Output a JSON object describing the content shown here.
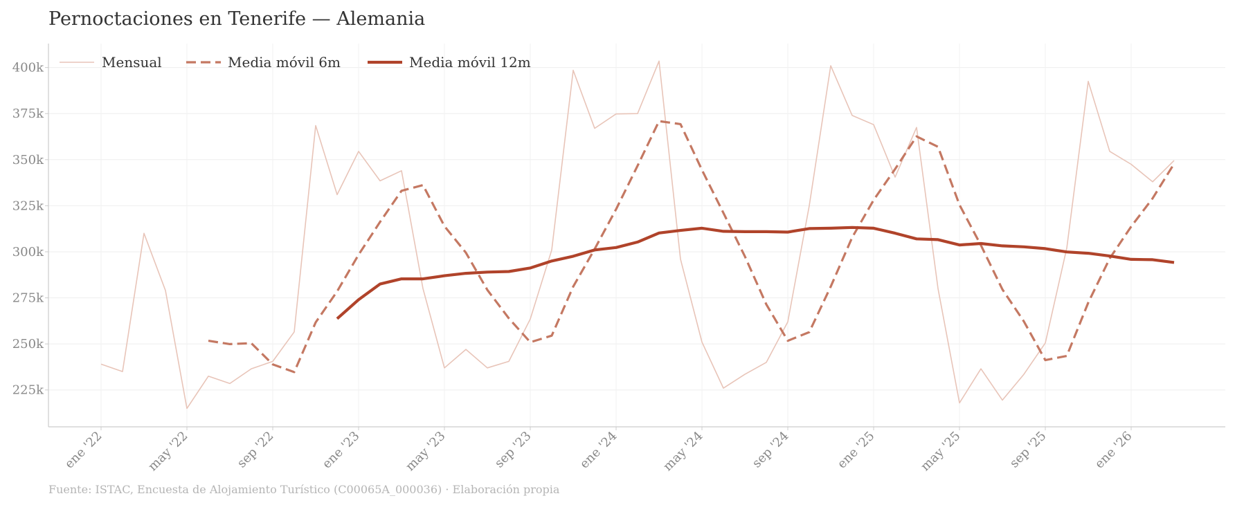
{
  "chart_data": {
    "type": "line",
    "title": "Pernoctaciones en Tenerife — Alemania",
    "source": "Fuente: ISTAC, Encuesta de Alojamiento Turístico (C00065A_000036)  ·  Elaboración propia",
    "xlabel": "",
    "ylabel": "",
    "ylim": [
      205000,
      413000
    ],
    "y_ticks": [
      225000,
      250000,
      275000,
      300000,
      325000,
      350000,
      375000,
      400000
    ],
    "y_tick_labels": [
      "225k",
      "250k",
      "275k",
      "300k",
      "325k",
      "350k",
      "375k",
      "400k"
    ],
    "x_ticks": [
      "2022-01",
      "2022-05",
      "2022-09",
      "2023-01",
      "2023-05",
      "2023-09",
      "2024-01",
      "2024-05",
      "2024-09",
      "2025-01",
      "2025-05",
      "2025-09",
      "2026-01"
    ],
    "x_tick_labels": [
      "ene '22",
      "may '22",
      "sep '22",
      "ene '23",
      "may '23",
      "sep '23",
      "ene '24",
      "may '24",
      "sep '24",
      "ene '25",
      "may '25",
      "sep '25",
      "ene '26"
    ],
    "grid": true,
    "legend": "top-left",
    "x": [
      "2022-01",
      "2022-02",
      "2022-03",
      "2022-04",
      "2022-05",
      "2022-06",
      "2022-07",
      "2022-08",
      "2022-09",
      "2022-10",
      "2022-11",
      "2022-12",
      "2023-01",
      "2023-02",
      "2023-03",
      "2023-04",
      "2023-05",
      "2023-06",
      "2023-07",
      "2023-08",
      "2023-09",
      "2023-10",
      "2023-11",
      "2023-12",
      "2024-01",
      "2024-02",
      "2024-03",
      "2024-04",
      "2024-05",
      "2024-06",
      "2024-07",
      "2024-08",
      "2024-09",
      "2024-10",
      "2024-11",
      "2024-12",
      "2025-01",
      "2025-02",
      "2025-03",
      "2025-04",
      "2025-05",
      "2025-06",
      "2025-07",
      "2025-08",
      "2025-09",
      "2025-10",
      "2025-11",
      "2025-12",
      "2026-01",
      "2026-02",
      "2026-03"
    ],
    "series": [
      {
        "name": "Mensual",
        "color": "#e8c4b8",
        "style": "solid",
        "values": [
          239000,
          235000,
          310000,
          279000,
          215000,
          232500,
          228500,
          236500,
          240500,
          256500,
          368500,
          331000,
          354500,
          338500,
          344000,
          280000,
          237000,
          247000,
          237000,
          240500,
          263500,
          301000,
          398500,
          367000,
          374800,
          375000,
          403500,
          296000,
          251000,
          226000,
          233500,
          240000,
          262000,
          325000,
          401000,
          374000,
          369000,
          340500,
          367500,
          280000,
          218000,
          236500,
          219500,
          233500,
          250500,
          302000,
          392500,
          354500,
          347500,
          338000,
          349500
        ]
      },
      {
        "name": "Media móvil 6m",
        "color": "#c47862",
        "style": "dashed",
        "values": [
          null,
          null,
          null,
          null,
          null,
          251700,
          249900,
          250400,
          238900,
          234700,
          261700,
          278500,
          298400,
          316200,
          333100,
          336200,
          313900,
          299500,
          279300,
          263900,
          250900,
          254500,
          281100,
          301500,
          323100,
          346700,
          370900,
          369300,
          344400,
          321100,
          297500,
          271400,
          251700,
          256400,
          281100,
          307800,
          328100,
          344900,
          362600,
          357000,
          325500,
          303500,
          279600,
          262200,
          241200,
          243500,
          272400,
          296400,
          313700,
          329000,
          347800
        ]
      },
      {
        "name": "Media móvil 12m",
        "color": "#b0432a",
        "style": "solid",
        "values": [
          null,
          null,
          null,
          null,
          null,
          null,
          null,
          null,
          null,
          null,
          null,
          263700,
          274000,
          282500,
          285300,
          285300,
          287000,
          288300,
          289000,
          289300,
          291200,
          295000,
          297600,
          301000,
          302300,
          305300,
          310200,
          311600,
          312800,
          311100,
          310900,
          310900,
          310700,
          312600,
          312800,
          313200,
          312800,
          310100,
          307000,
          306600,
          303700,
          304500,
          303200,
          302700,
          301700,
          299900,
          299200,
          297700,
          295900,
          295700,
          294200
        ]
      }
    ]
  }
}
